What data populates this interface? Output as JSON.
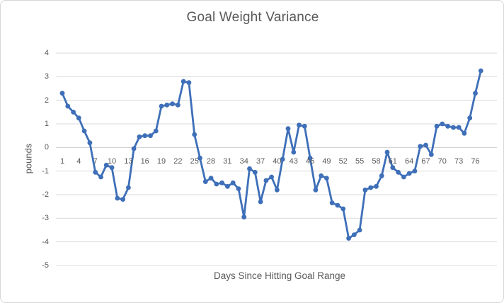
{
  "window": {
    "background": "#FFFFFF",
    "border_color": "#D7D5D5"
  },
  "chart_data": {
    "type": "line",
    "title": "Goal Weight Variance",
    "xlabel": "Days Since Hitting Goal Range",
    "ylabel": "pounds",
    "x": [
      1,
      2,
      3,
      4,
      5,
      6,
      7,
      8,
      9,
      10,
      11,
      12,
      13,
      14,
      15,
      16,
      17,
      18,
      19,
      20,
      21,
      22,
      23,
      24,
      25,
      26,
      27,
      28,
      29,
      30,
      31,
      32,
      33,
      34,
      35,
      36,
      37,
      38,
      39,
      40,
      41,
      42,
      43,
      44,
      45,
      46,
      47,
      48,
      49,
      50,
      51,
      52,
      53,
      54,
      55,
      56,
      57,
      58,
      59,
      60,
      61,
      62,
      63,
      64,
      65,
      66,
      67,
      68,
      69,
      70,
      71,
      72,
      73,
      74,
      75,
      76,
      77
    ],
    "values": [
      2.3,
      1.75,
      1.5,
      1.25,
      0.7,
      0.2,
      -1.05,
      -1.25,
      -0.75,
      -0.85,
      -2.15,
      -2.2,
      -1.7,
      -0.05,
      0.45,
      0.5,
      0.5,
      0.7,
      1.75,
      1.8,
      1.85,
      1.8,
      2.8,
      2.75,
      0.55,
      -0.45,
      -1.45,
      -1.3,
      -1.55,
      -1.5,
      -1.65,
      -1.5,
      -1.75,
      -2.95,
      -0.9,
      -1.05,
      -2.3,
      -1.4,
      -1.25,
      -1.8,
      -0.5,
      0.8,
      -0.2,
      0.95,
      0.9,
      -0.45,
      -1.8,
      -1.2,
      -1.3,
      -2.35,
      -2.45,
      -2.6,
      -3.85,
      -3.7,
      -3.5,
      -1.8,
      -1.7,
      -1.65,
      -1.2,
      -0.2,
      -0.85,
      -1.05,
      -1.25,
      -1.1,
      -1.0,
      0.05,
      0.1,
      -0.3,
      0.9,
      1.0,
      0.9,
      0.85,
      0.85,
      0.6,
      1.25,
      2.3,
      3.25
    ],
    "ylim": [
      -5,
      4
    ],
    "yticks": [
      4,
      3,
      2,
      1,
      0,
      -1,
      -2,
      -3,
      -4,
      -5
    ],
    "xticks": [
      1,
      4,
      7,
      10,
      13,
      16,
      19,
      22,
      25,
      28,
      31,
      34,
      37,
      40,
      43,
      46,
      49,
      52,
      55,
      58,
      61,
      64,
      67,
      70,
      73,
      76
    ],
    "grid": true,
    "legend": false,
    "series_color": "#3E6FB8",
    "marker": "circle",
    "text_color": "#595959",
    "gridline_color": "#D9D9D9",
    "axis_line_color": "#CBCBCB"
  }
}
